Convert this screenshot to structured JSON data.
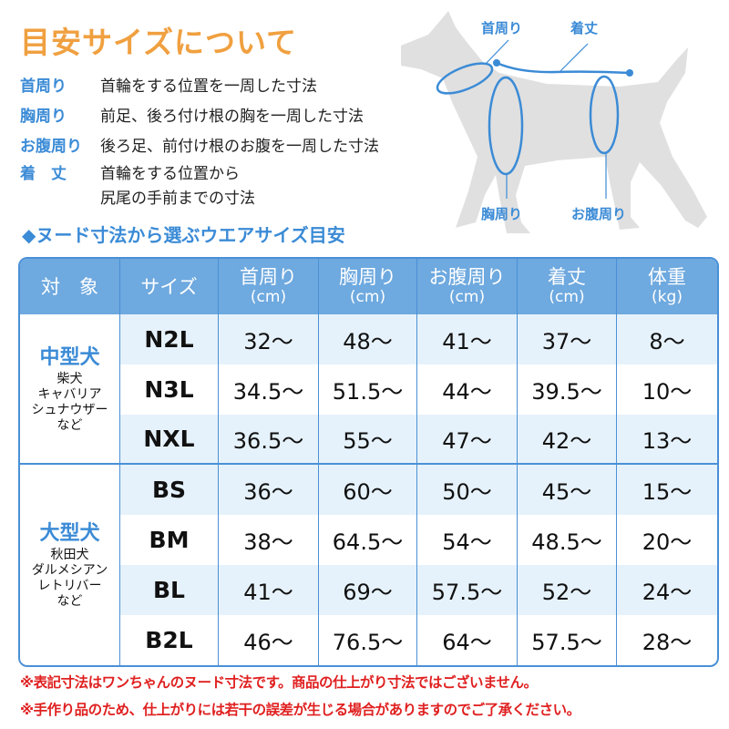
{
  "title": "目安サイズについて",
  "definitions": [
    {
      "term": "首周り",
      "desc": "首輪をする位置を一周した寸法"
    },
    {
      "term": "胸周り",
      "desc": "前足、後ろ付け根の胸を一周した寸法"
    },
    {
      "term": "お腹周り",
      "desc": "後ろ足、前付け根のお腹を一周した寸法"
    },
    {
      "term": "着　丈",
      "desc": "首輪をする位置から",
      "desc2": "尻尾の手前までの寸法"
    }
  ],
  "diagram": {
    "neck": "首周り",
    "length": "着丈",
    "chest": "胸周り",
    "belly": "お腹周り"
  },
  "subtitle": "◆ヌード寸法から選ぶウエアサイズ目安",
  "table": {
    "headers": [
      {
        "label": "対　象",
        "unit": ""
      },
      {
        "label": "サイズ",
        "unit": ""
      },
      {
        "label": "首周り",
        "unit": "(cm)"
      },
      {
        "label": "胸周り",
        "unit": "(cm)"
      },
      {
        "label": "お腹周り",
        "unit": "(cm)"
      },
      {
        "label": "着丈",
        "unit": "(cm)"
      },
      {
        "label": "体重",
        "unit": "(kg)"
      }
    ],
    "groups": [
      {
        "name": "中型犬",
        "breeds": [
          "柴犬",
          "キャバリア",
          "シュナウザー",
          "など"
        ],
        "rows": [
          [
            "N2L",
            "32～",
            "48～",
            "41～",
            "37～",
            "8～"
          ],
          [
            "N3L",
            "34.5～",
            "51.5～",
            "44～",
            "39.5～",
            "10～"
          ],
          [
            "NXL",
            "36.5～",
            "55～",
            "47～",
            "42～",
            "13～"
          ]
        ]
      },
      {
        "name": "大型犬",
        "breeds": [
          "秋田犬",
          "ダルメシアン",
          "レトリバー",
          "など"
        ],
        "rows": [
          [
            "BS",
            "36～",
            "60～",
            "50～",
            "45～",
            "15～"
          ],
          [
            "BM",
            "38～",
            "64.5～",
            "54～",
            "48.5～",
            "20～"
          ],
          [
            "BL",
            "41～",
            "69～",
            "57.5～",
            "52～",
            "24～"
          ],
          [
            "B2L",
            "46～",
            "76.5～",
            "64～",
            "57.5～",
            "28～"
          ]
        ]
      }
    ]
  },
  "notes": [
    "※表記寸法はワンちゃんのヌード寸法です。商品の仕上がり寸法ではございません。",
    "※手作り品のため、仕上がりには若干の誤差が生じる場合がありますのでご了承ください。"
  ],
  "colors": {
    "title": "#f0a040",
    "accent": "#3b8bd6",
    "header": "#6ea9df",
    "stripe": "#e6f2fb",
    "note": "#e02020"
  }
}
